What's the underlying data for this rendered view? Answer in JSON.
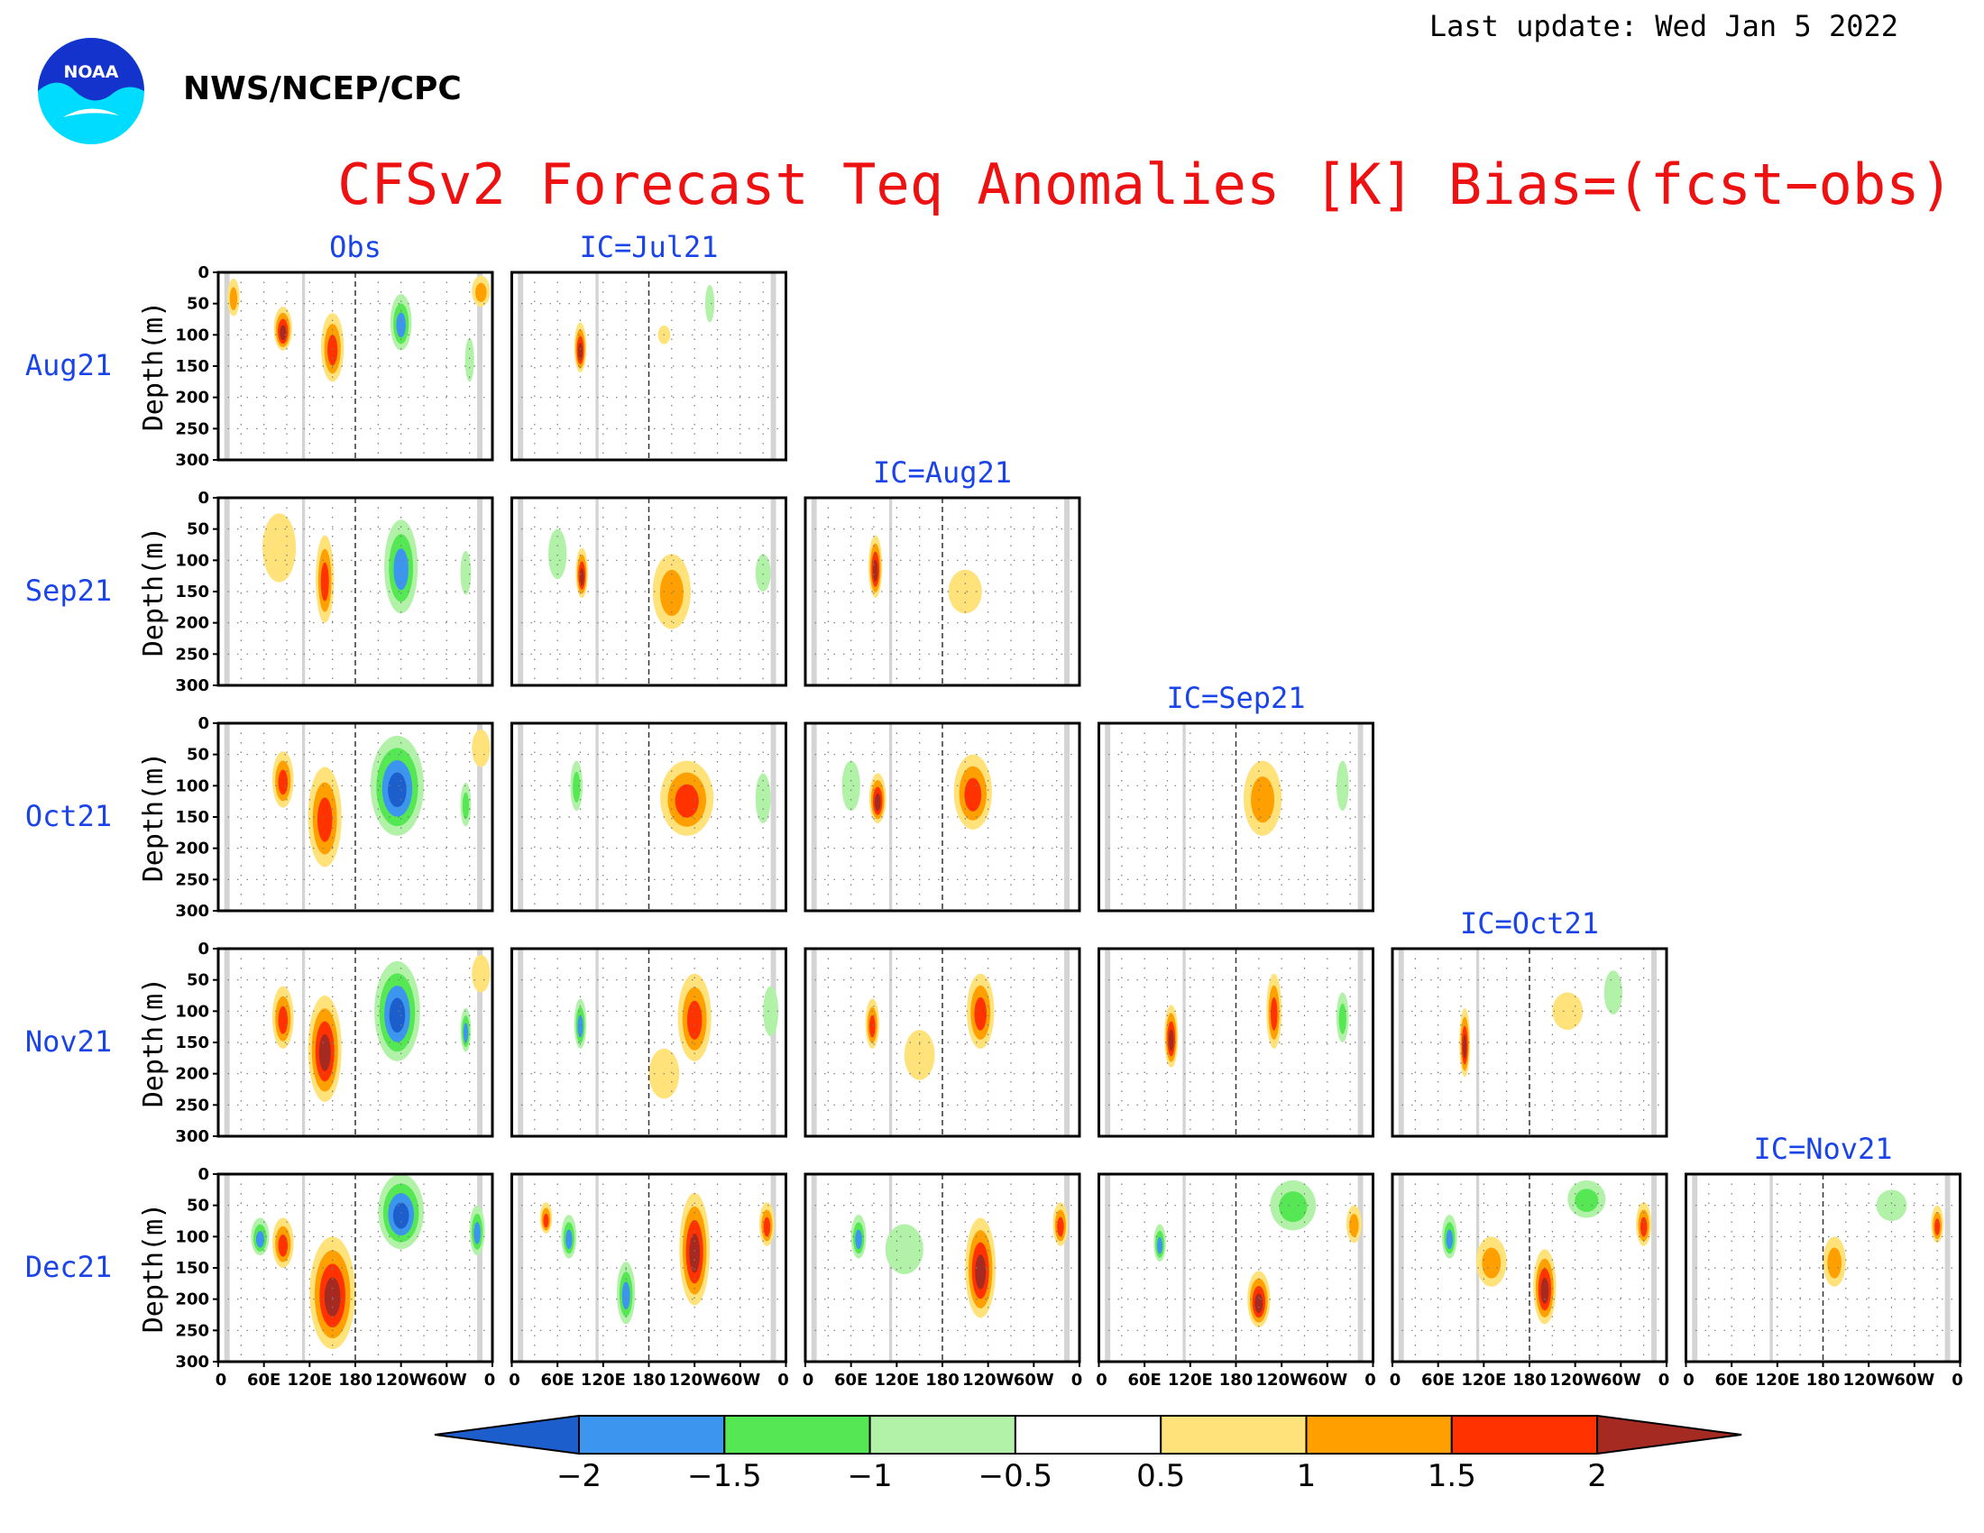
{
  "header": {
    "last_update": "Last update: Wed Jan 5 2022",
    "org": "NWS/NCEP/CPC",
    "logo_text": "NOAA"
  },
  "chart_data": {
    "type": "heatmap",
    "title": "CFSv2 Forecast Teq Anomalies [K] Bias=(fcst−obs)",
    "ylabel": "Depth(m)",
    "y_ticks": [
      "0",
      "50",
      "100",
      "150",
      "200",
      "250",
      "300"
    ],
    "x_ticks": [
      "0",
      "60E",
      "120E",
      "180",
      "120W",
      "60W",
      "0"
    ],
    "ylim": [
      300,
      0
    ],
    "xlim": [
      0,
      360
    ],
    "rows": [
      "Aug21",
      "Sep21",
      "Oct21",
      "Nov21",
      "Dec21"
    ],
    "columns": [
      "Obs",
      "IC=Jul21",
      "IC=Aug21",
      "IC=Sep21",
      "IC=Oct21",
      "IC=Nov21"
    ],
    "colorbar": {
      "levels": [
        "−2",
        "−1.5",
        "−1",
        "−0.5",
        "0.5",
        "1",
        "1.5",
        "2"
      ],
      "colors": [
        "#1c5fcc",
        "#3c96f0",
        "#56e854",
        "#b2f2a8",
        "#ffffff",
        "#ffe27a",
        "#ffa000",
        "#ff3200",
        "#a52a22"
      ]
    },
    "panels": [
      {
        "row": 0,
        "col": 0,
        "blobs": [
          {
            "lon": 85,
            "depth": 90,
            "rx": 12,
            "ry": 35,
            "lvl": 8
          },
          {
            "lon": 150,
            "depth": 120,
            "rx": 15,
            "ry": 55,
            "lvl": 7
          },
          {
            "lon": 240,
            "depth": 80,
            "rx": 14,
            "ry": 45,
            "lvl": 1
          },
          {
            "lon": 330,
            "depth": 140,
            "rx": 6,
            "ry": 35,
            "lvl": 3
          },
          {
            "lon": 345,
            "depth": 30,
            "rx": 12,
            "ry": 25,
            "lvl": 6
          },
          {
            "lon": 20,
            "depth": 40,
            "rx": 8,
            "ry": 30,
            "lvl": 6
          }
        ]
      },
      {
        "row": 0,
        "col": 1,
        "blobs": [
          {
            "lon": 90,
            "depth": 120,
            "rx": 8,
            "ry": 40,
            "lvl": 8
          },
          {
            "lon": 200,
            "depth": 100,
            "rx": 8,
            "ry": 15,
            "lvl": 5
          },
          {
            "lon": 260,
            "depth": 50,
            "rx": 6,
            "ry": 30,
            "lvl": 3
          }
        ]
      },
      {
        "row": 1,
        "col": 0,
        "blobs": [
          {
            "lon": 80,
            "depth": 80,
            "rx": 22,
            "ry": 55,
            "lvl": 5
          },
          {
            "lon": 140,
            "depth": 130,
            "rx": 12,
            "ry": 70,
            "lvl": 7
          },
          {
            "lon": 240,
            "depth": 110,
            "rx": 22,
            "ry": 75,
            "lvl": 1
          },
          {
            "lon": 325,
            "depth": 120,
            "rx": 7,
            "ry": 35,
            "lvl": 3
          }
        ]
      },
      {
        "row": 1,
        "col": 1,
        "blobs": [
          {
            "lon": 92,
            "depth": 120,
            "rx": 8,
            "ry": 40,
            "lvl": 8
          },
          {
            "lon": 210,
            "depth": 150,
            "rx": 25,
            "ry": 60,
            "lvl": 6
          },
          {
            "lon": 60,
            "depth": 90,
            "rx": 12,
            "ry": 40,
            "lvl": 3
          },
          {
            "lon": 330,
            "depth": 120,
            "rx": 10,
            "ry": 30,
            "lvl": 3
          }
        ]
      },
      {
        "row": 1,
        "col": 2,
        "blobs": [
          {
            "lon": 92,
            "depth": 110,
            "rx": 9,
            "ry": 50,
            "lvl": 8
          },
          {
            "lon": 210,
            "depth": 150,
            "rx": 22,
            "ry": 35,
            "lvl": 5
          }
        ]
      },
      {
        "row": 2,
        "col": 0,
        "blobs": [
          {
            "lon": 85,
            "depth": 90,
            "rx": 14,
            "ry": 45,
            "lvl": 7
          },
          {
            "lon": 140,
            "depth": 150,
            "rx": 22,
            "ry": 80,
            "lvl": 7
          },
          {
            "lon": 235,
            "depth": 100,
            "rx": 35,
            "ry": 80,
            "lvl": 0
          },
          {
            "lon": 325,
            "depth": 130,
            "rx": 7,
            "ry": 35,
            "lvl": 2
          },
          {
            "lon": 345,
            "depth": 40,
            "rx": 12,
            "ry": 30,
            "lvl": 5
          }
        ]
      },
      {
        "row": 2,
        "col": 1,
        "blobs": [
          {
            "lon": 85,
            "depth": 100,
            "rx": 8,
            "ry": 40,
            "lvl": 2
          },
          {
            "lon": 230,
            "depth": 120,
            "rx": 35,
            "ry": 60,
            "lvl": 7
          },
          {
            "lon": 330,
            "depth": 120,
            "rx": 10,
            "ry": 40,
            "lvl": 3
          }
        ]
      },
      {
        "row": 2,
        "col": 2,
        "blobs": [
          {
            "lon": 95,
            "depth": 120,
            "rx": 11,
            "ry": 40,
            "lvl": 8
          },
          {
            "lon": 220,
            "depth": 110,
            "rx": 25,
            "ry": 60,
            "lvl": 7
          },
          {
            "lon": 60,
            "depth": 100,
            "rx": 12,
            "ry": 40,
            "lvl": 3
          }
        ]
      },
      {
        "row": 2,
        "col": 3,
        "blobs": [
          {
            "lon": 215,
            "depth": 120,
            "rx": 25,
            "ry": 60,
            "lvl": 6
          },
          {
            "lon": 320,
            "depth": 100,
            "rx": 8,
            "ry": 40,
            "lvl": 3
          }
        ]
      },
      {
        "row": 3,
        "col": 0,
        "blobs": [
          {
            "lon": 85,
            "depth": 110,
            "rx": 14,
            "ry": 50,
            "lvl": 7
          },
          {
            "lon": 140,
            "depth": 160,
            "rx": 22,
            "ry": 85,
            "lvl": 8
          },
          {
            "lon": 235,
            "depth": 100,
            "rx": 30,
            "ry": 80,
            "lvl": 0
          },
          {
            "lon": 325,
            "depth": 130,
            "rx": 7,
            "ry": 35,
            "lvl": 1
          },
          {
            "lon": 345,
            "depth": 40,
            "rx": 12,
            "ry": 30,
            "lvl": 5
          }
        ]
      },
      {
        "row": 3,
        "col": 1,
        "blobs": [
          {
            "lon": 90,
            "depth": 120,
            "rx": 8,
            "ry": 40,
            "lvl": 1
          },
          {
            "lon": 240,
            "depth": 110,
            "rx": 22,
            "ry": 70,
            "lvl": 7
          },
          {
            "lon": 200,
            "depth": 200,
            "rx": 20,
            "ry": 40,
            "lvl": 5
          },
          {
            "lon": 340,
            "depth": 100,
            "rx": 10,
            "ry": 40,
            "lvl": 3
          }
        ]
      },
      {
        "row": 3,
        "col": 2,
        "blobs": [
          {
            "lon": 88,
            "depth": 120,
            "rx": 9,
            "ry": 40,
            "lvl": 7
          },
          {
            "lon": 230,
            "depth": 100,
            "rx": 18,
            "ry": 60,
            "lvl": 7
          },
          {
            "lon": 150,
            "depth": 170,
            "rx": 20,
            "ry": 40,
            "lvl": 5
          }
        ]
      },
      {
        "row": 3,
        "col": 3,
        "blobs": [
          {
            "lon": 95,
            "depth": 140,
            "rx": 9,
            "ry": 50,
            "lvl": 8
          },
          {
            "lon": 230,
            "depth": 100,
            "rx": 10,
            "ry": 60,
            "lvl": 7
          },
          {
            "lon": 320,
            "depth": 110,
            "rx": 8,
            "ry": 40,
            "lvl": 2
          }
        ]
      },
      {
        "row": 3,
        "col": 4,
        "blobs": [
          {
            "lon": 95,
            "depth": 150,
            "rx": 7,
            "ry": 55,
            "lvl": 8
          },
          {
            "lon": 230,
            "depth": 100,
            "rx": 20,
            "ry": 30,
            "lvl": 5
          },
          {
            "lon": 290,
            "depth": 70,
            "rx": 12,
            "ry": 35,
            "lvl": 3
          }
        ]
      },
      {
        "row": 4,
        "col": 0,
        "blobs": [
          {
            "lon": 85,
            "depth": 110,
            "rx": 14,
            "ry": 40,
            "lvl": 7
          },
          {
            "lon": 150,
            "depth": 190,
            "rx": 30,
            "ry": 90,
            "lvl": 8
          },
          {
            "lon": 240,
            "depth": 60,
            "rx": 30,
            "ry": 60,
            "lvl": 0
          },
          {
            "lon": 340,
            "depth": 90,
            "rx": 10,
            "ry": 40,
            "lvl": 1
          },
          {
            "lon": 55,
            "depth": 100,
            "rx": 12,
            "ry": 30,
            "lvl": 1
          }
        ]
      },
      {
        "row": 4,
        "col": 1,
        "blobs": [
          {
            "lon": 75,
            "depth": 100,
            "rx": 10,
            "ry": 35,
            "lvl": 1
          },
          {
            "lon": 150,
            "depth": 190,
            "rx": 12,
            "ry": 50,
            "lvl": 1
          },
          {
            "lon": 240,
            "depth": 120,
            "rx": 20,
            "ry": 90,
            "lvl": 8
          },
          {
            "lon": 335,
            "depth": 80,
            "rx": 10,
            "ry": 35,
            "lvl": 7
          },
          {
            "lon": 45,
            "depth": 70,
            "rx": 8,
            "ry": 25,
            "lvl": 7
          }
        ]
      },
      {
        "row": 4,
        "col": 2,
        "blobs": [
          {
            "lon": 70,
            "depth": 100,
            "rx": 10,
            "ry": 35,
            "lvl": 1
          },
          {
            "lon": 230,
            "depth": 150,
            "rx": 20,
            "ry": 80,
            "lvl": 8
          },
          {
            "lon": 335,
            "depth": 80,
            "rx": 10,
            "ry": 35,
            "lvl": 7
          },
          {
            "lon": 130,
            "depth": 120,
            "rx": 25,
            "ry": 40,
            "lvl": 3
          }
        ]
      },
      {
        "row": 4,
        "col": 3,
        "blobs": [
          {
            "lon": 80,
            "depth": 110,
            "rx": 8,
            "ry": 30,
            "lvl": 1
          },
          {
            "lon": 210,
            "depth": 200,
            "rx": 15,
            "ry": 45,
            "lvl": 8
          },
          {
            "lon": 255,
            "depth": 50,
            "rx": 30,
            "ry": 40,
            "lvl": 2
          },
          {
            "lon": 335,
            "depth": 80,
            "rx": 10,
            "ry": 30,
            "lvl": 6
          }
        ]
      },
      {
        "row": 4,
        "col": 4,
        "blobs": [
          {
            "lon": 75,
            "depth": 100,
            "rx": 10,
            "ry": 35,
            "lvl": 1
          },
          {
            "lon": 200,
            "depth": 180,
            "rx": 15,
            "ry": 60,
            "lvl": 8
          },
          {
            "lon": 255,
            "depth": 40,
            "rx": 25,
            "ry": 30,
            "lvl": 2
          },
          {
            "lon": 330,
            "depth": 80,
            "rx": 10,
            "ry": 35,
            "lvl": 7
          },
          {
            "lon": 130,
            "depth": 140,
            "rx": 20,
            "ry": 40,
            "lvl": 6
          }
        ]
      },
      {
        "row": 4,
        "col": 5,
        "blobs": [
          {
            "lon": 195,
            "depth": 140,
            "rx": 15,
            "ry": 40,
            "lvl": 6
          },
          {
            "lon": 330,
            "depth": 80,
            "rx": 8,
            "ry": 30,
            "lvl": 7
          },
          {
            "lon": 270,
            "depth": 50,
            "rx": 20,
            "ry": 25,
            "lvl": 3
          }
        ]
      }
    ]
  }
}
